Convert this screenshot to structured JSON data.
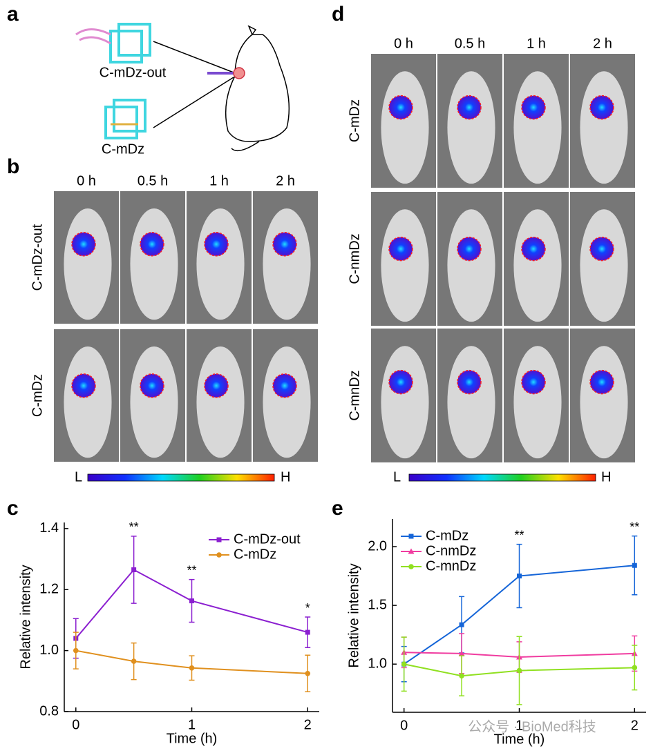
{
  "panel_labels": [
    "a",
    "b",
    "c",
    "d",
    "e"
  ],
  "panel_a": {
    "labels": [
      "C-mDz-out",
      "C-mDz"
    ]
  },
  "panel_b": {
    "columns": [
      "0 h",
      "0.5 h",
      "1 h",
      "2 h"
    ],
    "rows": [
      "C-mDz-out",
      "C-mDz"
    ],
    "colorbar": [
      "L",
      "H"
    ]
  },
  "panel_d": {
    "columns": [
      "0 h",
      "0.5 h",
      "1 h",
      "2 h"
    ],
    "rows": [
      "C-mDz",
      "C-nmDz",
      "C-mnDz"
    ],
    "colorbar": [
      "L",
      "H"
    ]
  },
  "watermark": "公众号 · BioMed科技",
  "chart_data": [
    {
      "type": "line",
      "x_label": "Time (h)",
      "y_label": "Relative intensity",
      "x": [
        0,
        0.5,
        1,
        2
      ],
      "xlim": [
        -0.1,
        2.1
      ],
      "xticks": [
        0,
        1,
        2
      ],
      "ylim": [
        0.8,
        1.42
      ],
      "yticks": [
        0.8,
        {
          "value": 1.0,
          "label": "1.0"
        },
        1.2,
        1.4
      ],
      "legend": "upper right",
      "series": [
        {
          "name": "C-mDz-out",
          "color": "#8b1fd0",
          "marker": "square",
          "values": [
            1.04,
            1.265,
            1.163,
            1.06
          ],
          "errors": [
            0.065,
            0.11,
            0.07,
            0.05
          ]
        },
        {
          "name": "C-mDz",
          "color": "#e0901e",
          "marker": "circle",
          "values": [
            1.0,
            0.965,
            0.943,
            0.925
          ],
          "errors": [
            0.06,
            0.06,
            0.04,
            0.06
          ]
        }
      ],
      "annotations": [
        {
          "text": "**",
          "x": 0.5
        },
        {
          "text": "**",
          "x": 1
        },
        {
          "text": "*",
          "x": 2
        }
      ]
    },
    {
      "type": "line",
      "x_label": "Time (h)",
      "y_label": "Relative intensity",
      "x": [
        0,
        0.5,
        1,
        2
      ],
      "xlim": [
        -0.1,
        2.1
      ],
      "xticks": [
        0,
        1,
        2
      ],
      "ylim": [
        0.59,
        2.235
      ],
      "yticks": [
        {
          "value": 1.0,
          "label": "1.0"
        },
        1.5,
        {
          "value": 2.0,
          "label": "2.0"
        }
      ],
      "legend": "upper left",
      "series": [
        {
          "name": "C-mDz",
          "color": "#1565d8",
          "marker": "square",
          "values": [
            1.0,
            1.335,
            1.75,
            1.84
          ],
          "errors": [
            0.15,
            0.24,
            0.27,
            0.25
          ]
        },
        {
          "name": "C-nmDz",
          "color": "#f03ca0",
          "marker": "triangle",
          "values": [
            1.1,
            1.09,
            1.06,
            1.09
          ],
          "errors": [
            0.13,
            0.17,
            0.13,
            0.15
          ]
        },
        {
          "name": "C-mnDz",
          "color": "#90e020",
          "marker": "circle",
          "values": [
            1.0,
            0.9,
            0.945,
            0.97
          ],
          "errors": [
            0.23,
            0.17,
            0.29,
            0.19
          ]
        }
      ],
      "annotations": [
        {
          "text": "**",
          "x": 1
        },
        {
          "text": "**",
          "x": 2
        }
      ]
    }
  ]
}
